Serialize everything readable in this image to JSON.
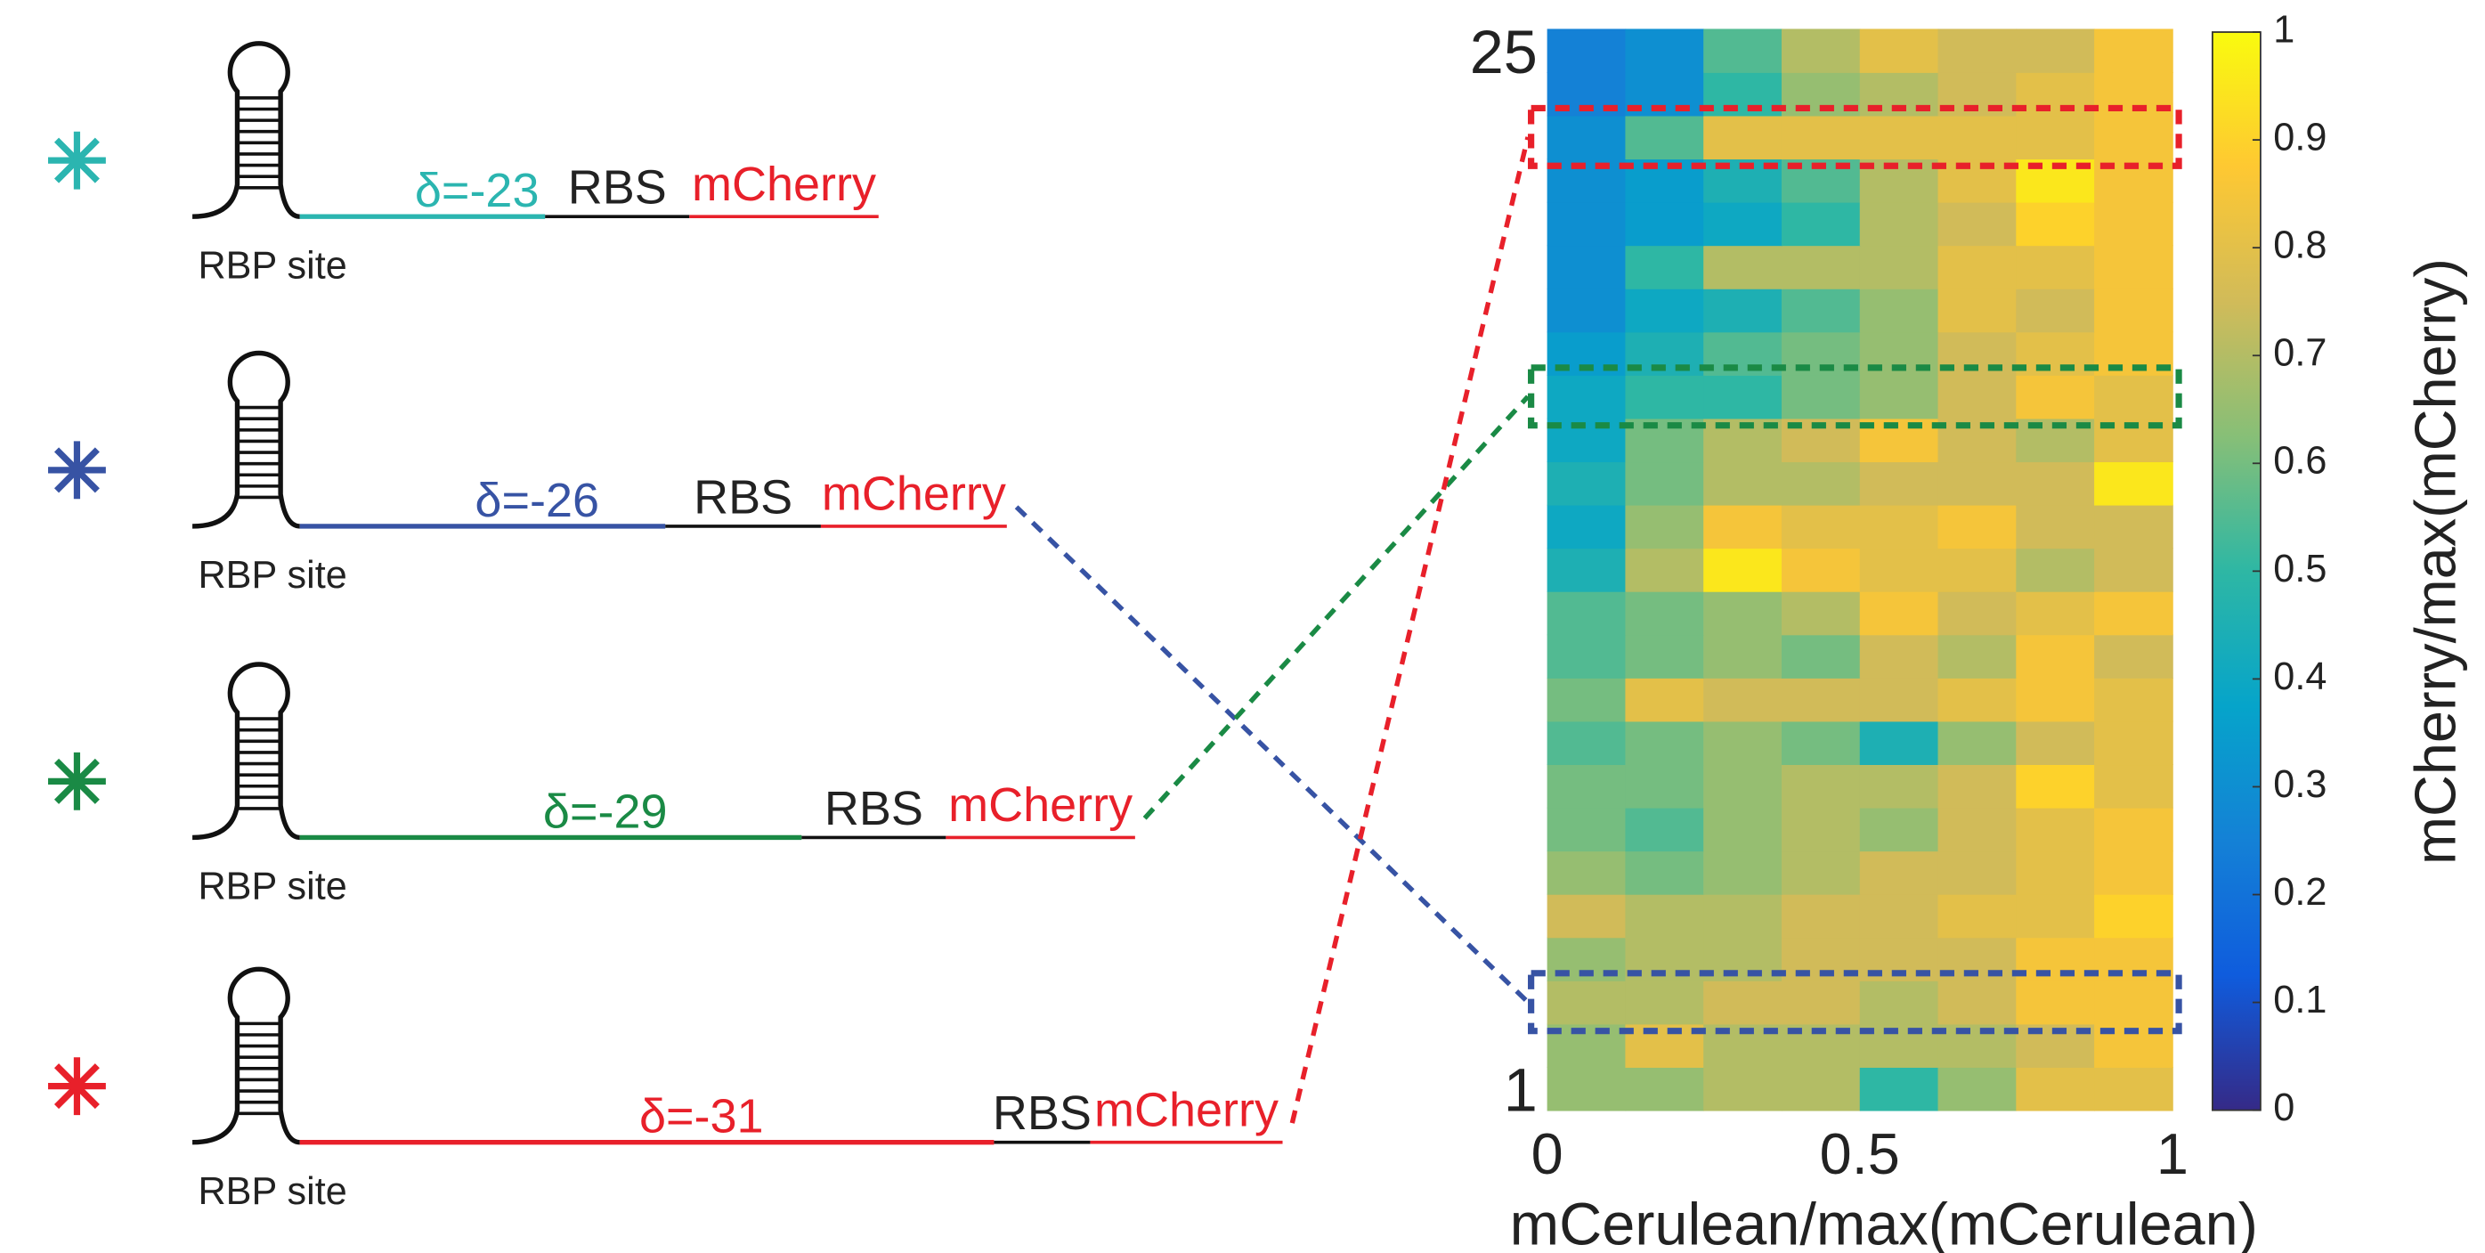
{
  "constructs": [
    {
      "delta": "δ=-23",
      "rbs": "RBS",
      "gene": "mCherry",
      "site": "RBP site",
      "color": "#2bb5b0"
    },
    {
      "delta": "δ=-26",
      "rbs": "RBS",
      "gene": "mCherry",
      "site": "RBP site",
      "color": "#3753a4"
    },
    {
      "delta": "δ=-29",
      "rbs": "RBS",
      "gene": "mCherry",
      "site": "RBP site",
      "color": "#1a8a45"
    },
    {
      "delta": "δ=-31",
      "rbs": "RBS",
      "gene": "mCherry",
      "site": "RBP site",
      "color": "#e8202a"
    }
  ],
  "chart_data": {
    "type": "heatmap",
    "xlabel": "mCerulean/max(mCerulean)",
    "colorbar_label": "mCherry/max(mCherry)",
    "x": [
      0.0625,
      0.1875,
      0.3125,
      0.4375,
      0.5625,
      0.6875,
      0.8125,
      0.9375
    ],
    "y": [
      1,
      2,
      3,
      4,
      5,
      6,
      7,
      8,
      9,
      10,
      11,
      12,
      13,
      14,
      15,
      16,
      17,
      18,
      19,
      20,
      21,
      22,
      23,
      24,
      25
    ],
    "xlim": [
      0,
      1
    ],
    "ylim": [
      0.5,
      25.5
    ],
    "xticks": [
      0,
      0.5,
      1
    ],
    "yticks": [
      1,
      25
    ],
    "clim": [
      0,
      1
    ],
    "cticks": [
      0,
      0.1,
      0.2,
      0.3,
      0.4,
      0.5,
      0.6,
      0.7,
      0.8,
      0.9,
      1
    ],
    "colormap": [
      "#352a87",
      "#0f5cdd",
      "#1481d6",
      "#06a4ca",
      "#2eb7a4",
      "#87bf77",
      "#d1bb59",
      "#fec832",
      "#f9fb0e"
    ],
    "z": [
      [
        0.65,
        0.65,
        0.7,
        0.7,
        0.5,
        0.65,
        0.8,
        0.8
      ],
      [
        0.65,
        0.8,
        0.7,
        0.7,
        0.7,
        0.7,
        0.75,
        0.85
      ],
      [
        0.7,
        0.7,
        0.75,
        0.75,
        0.7,
        0.75,
        0.85,
        0.85
      ],
      [
        0.65,
        0.7,
        0.7,
        0.75,
        0.75,
        0.75,
        0.85,
        0.85
      ],
      [
        0.75,
        0.7,
        0.7,
        0.75,
        0.75,
        0.8,
        0.8,
        0.9
      ],
      [
        0.65,
        0.6,
        0.65,
        0.7,
        0.75,
        0.75,
        0.8,
        0.85
      ],
      [
        0.6,
        0.55,
        0.65,
        0.7,
        0.65,
        0.75,
        0.8,
        0.85
      ],
      [
        0.6,
        0.6,
        0.65,
        0.7,
        0.7,
        0.75,
        0.9,
        0.8
      ],
      [
        0.55,
        0.6,
        0.65,
        0.6,
        0.45,
        0.65,
        0.75,
        0.8
      ],
      [
        0.6,
        0.8,
        0.75,
        0.75,
        0.75,
        0.8,
        0.85,
        0.8
      ],
      [
        0.55,
        0.6,
        0.65,
        0.6,
        0.75,
        0.7,
        0.85,
        0.75
      ],
      [
        0.55,
        0.6,
        0.65,
        0.7,
        0.85,
        0.75,
        0.8,
        0.85
      ],
      [
        0.45,
        0.7,
        0.95,
        0.85,
        0.8,
        0.8,
        0.7,
        0.75
      ],
      [
        0.4,
        0.65,
        0.85,
        0.8,
        0.8,
        0.85,
        0.75,
        0.75
      ],
      [
        0.45,
        0.6,
        0.7,
        0.7,
        0.75,
        0.75,
        0.75,
        0.95
      ],
      [
        0.4,
        0.6,
        0.7,
        0.75,
        0.85,
        0.75,
        0.7,
        0.8
      ],
      [
        0.4,
        0.5,
        0.5,
        0.6,
        0.65,
        0.75,
        0.85,
        0.8
      ],
      [
        0.35,
        0.45,
        0.55,
        0.6,
        0.65,
        0.75,
        0.8,
        0.85
      ],
      [
        0.3,
        0.4,
        0.45,
        0.55,
        0.65,
        0.8,
        0.75,
        0.85
      ],
      [
        0.3,
        0.5,
        0.7,
        0.7,
        0.7,
        0.8,
        0.8,
        0.85
      ],
      [
        0.3,
        0.35,
        0.4,
        0.5,
        0.7,
        0.75,
        0.9,
        0.85
      ],
      [
        0.3,
        0.35,
        0.45,
        0.55,
        0.7,
        0.8,
        0.95,
        0.85
      ],
      [
        0.3,
        0.55,
        0.8,
        0.8,
        0.8,
        0.8,
        0.8,
        0.85
      ],
      [
        0.25,
        0.3,
        0.5,
        0.65,
        0.7,
        0.75,
        0.8,
        0.85
      ],
      [
        0.25,
        0.3,
        0.55,
        0.7,
        0.8,
        0.75,
        0.75,
        0.85
      ]
    ],
    "highlights": [
      {
        "row": 23,
        "color": "#e8202a"
      },
      {
        "row": 17,
        "color": "#1a8a45"
      },
      {
        "row": 3,
        "color": "#3753a4"
      }
    ]
  }
}
